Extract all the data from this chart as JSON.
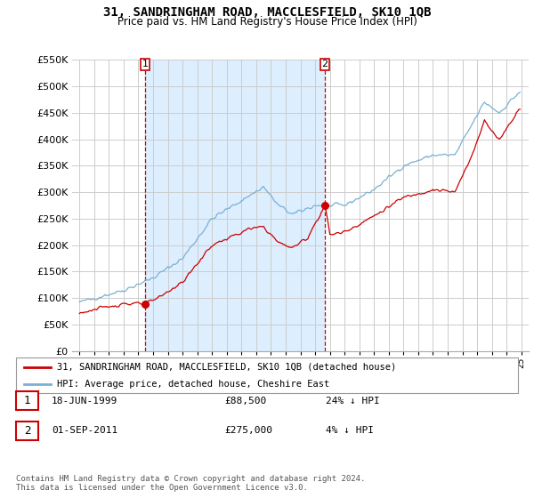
{
  "title": "31, SANDRINGHAM ROAD, MACCLESFIELD, SK10 1QB",
  "subtitle": "Price paid vs. HM Land Registry's House Price Index (HPI)",
  "ylim": [
    0,
    550000
  ],
  "yticks": [
    0,
    50000,
    100000,
    150000,
    200000,
    250000,
    300000,
    350000,
    400000,
    450000,
    500000,
    550000
  ],
  "background_color": "#ffffff",
  "grid_color": "#cccccc",
  "shade_color": "#ddeeff",
  "legend_line1": "31, SANDRINGHAM ROAD, MACCLESFIELD, SK10 1QB (detached house)",
  "legend_line2": "HPI: Average price, detached house, Cheshire East",
  "line1_color": "#cc0000",
  "line2_color": "#7ab0d4",
  "annotation1_date": "18-JUN-1999",
  "annotation1_price": "£88,500",
  "annotation1_hpi": "24% ↓ HPI",
  "annotation2_date": "01-SEP-2011",
  "annotation2_price": "£275,000",
  "annotation2_hpi": "4% ↓ HPI",
  "footer": "Contains HM Land Registry data © Crown copyright and database right 2024.\nThis data is licensed under the Open Government Licence v3.0.",
  "purchase1_x": 1999.46,
  "purchase1_y": 88500,
  "purchase2_x": 2011.67,
  "purchase2_y": 275000,
  "xlim_left": 1994.5,
  "xlim_right": 2025.5,
  "xtick_years": [
    1995,
    1996,
    1997,
    1998,
    1999,
    2000,
    2001,
    2002,
    2003,
    2004,
    2005,
    2006,
    2007,
    2008,
    2009,
    2010,
    2011,
    2012,
    2013,
    2014,
    2015,
    2016,
    2017,
    2018,
    2019,
    2020,
    2021,
    2022,
    2023,
    2024,
    2025
  ]
}
